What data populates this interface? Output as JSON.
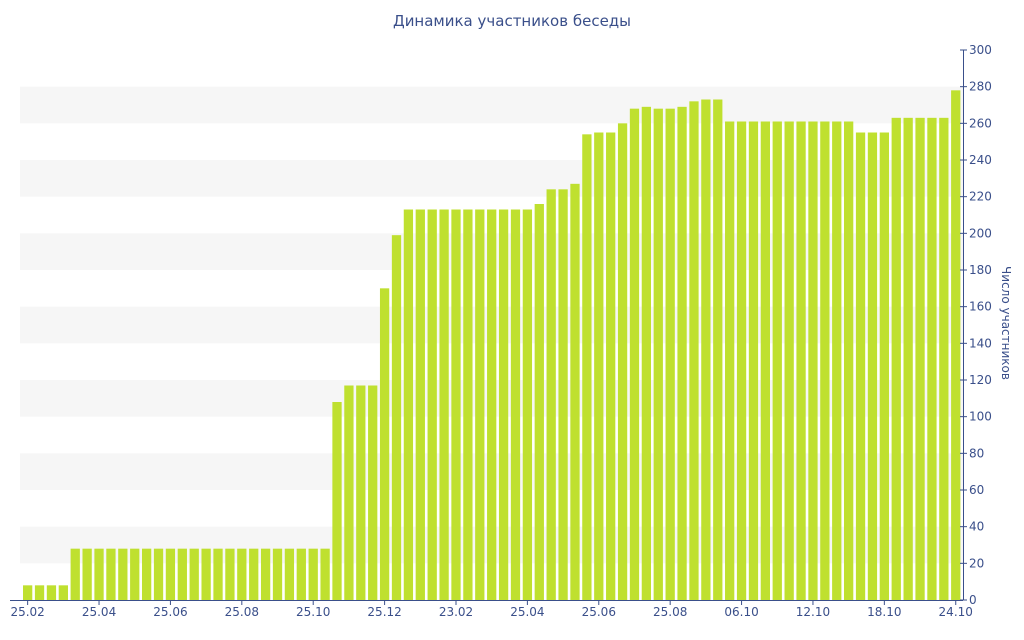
{
  "chart_data": {
    "type": "bar",
    "title": "Динамика участников беседы",
    "ylabel": "Число участников",
    "ylim": [
      0,
      300
    ],
    "yticks": [
      0,
      20,
      40,
      60,
      80,
      100,
      120,
      140,
      160,
      180,
      200,
      220,
      240,
      260,
      280,
      300
    ],
    "x_tick_labels": [
      {
        "label": "25.02",
        "index": 0
      },
      {
        "label": "25.04",
        "index": 6
      },
      {
        "label": "25.06",
        "index": 12
      },
      {
        "label": "25.08",
        "index": 18
      },
      {
        "label": "25.10",
        "index": 24
      },
      {
        "label": "25.12",
        "index": 30
      },
      {
        "label": "23.02",
        "index": 36
      },
      {
        "label": "25.04",
        "index": 42
      },
      {
        "label": "25.06",
        "index": 48
      },
      {
        "label": "25.08",
        "index": 54
      },
      {
        "label": "06.10",
        "index": 60
      },
      {
        "label": "12.10",
        "index": 66
      },
      {
        "label": "18.10",
        "index": 72
      },
      {
        "label": "24.10",
        "index": 78
      }
    ],
    "values": [
      8,
      8,
      8,
      8,
      28,
      28,
      28,
      28,
      28,
      28,
      28,
      28,
      28,
      28,
      28,
      28,
      28,
      28,
      28,
      28,
      28,
      28,
      28,
      28,
      28,
      28,
      108,
      117,
      117,
      117,
      170,
      199,
      213,
      213,
      213,
      213,
      213,
      213,
      213,
      213,
      213,
      213,
      213,
      216,
      224,
      224,
      227,
      254,
      255,
      255,
      260,
      268,
      269,
      268,
      268,
      269,
      272,
      273,
      273,
      261,
      261,
      261,
      261,
      261,
      261,
      261,
      261,
      261,
      261,
      261,
      255,
      255,
      255,
      263,
      263,
      263,
      263,
      263,
      278
    ],
    "bar_color": "#bfe02f",
    "text_color": "#3a4f8a",
    "band_color": "#f6f6f6",
    "grid": "alternating horizontal bands",
    "y_axis_side": "right"
  }
}
